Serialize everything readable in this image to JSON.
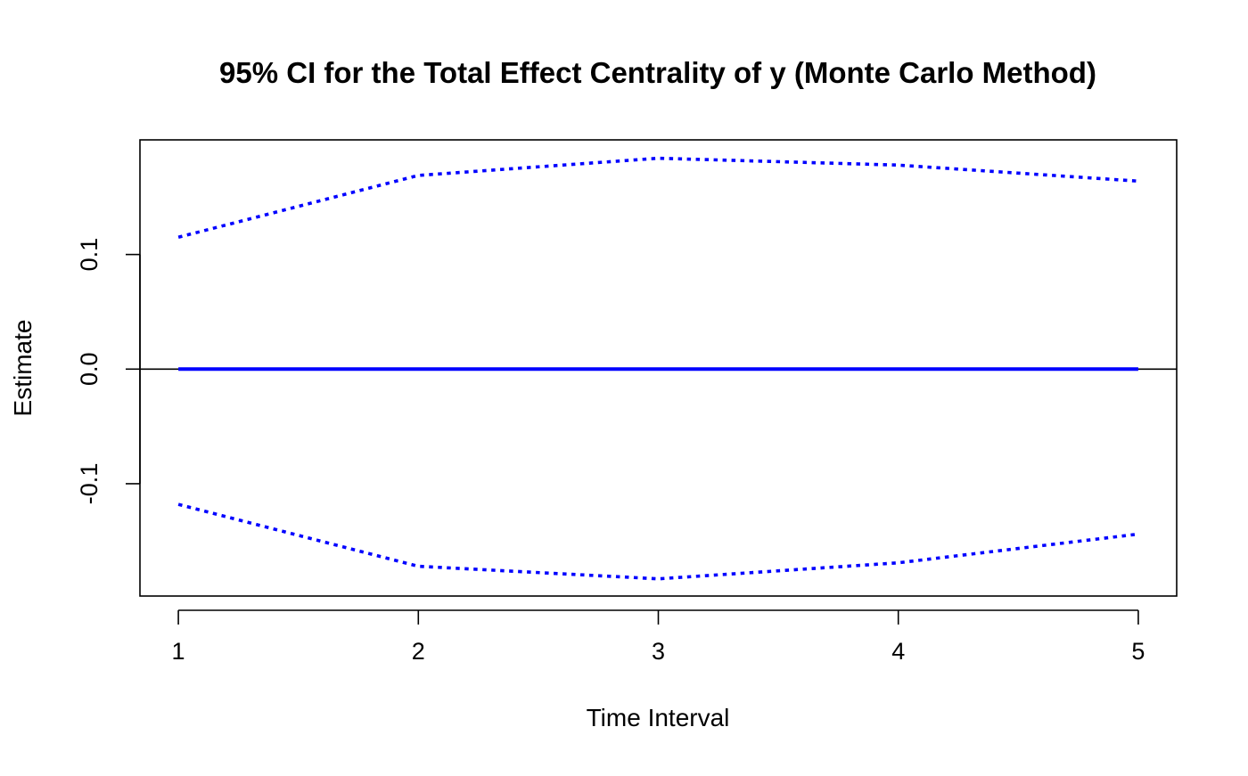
{
  "chart_data": {
    "type": "line",
    "title": "95% CI for the Total Effect Centrality of y (Monte Carlo Method)",
    "xlabel": "Time Interval",
    "ylabel": "Estimate",
    "x": [
      1,
      2,
      3,
      4,
      5
    ],
    "xticks": [
      "1",
      "2",
      "3",
      "4",
      "5"
    ],
    "yticks": [
      -0.1,
      0.0,
      0.1
    ],
    "ytick_labels": [
      "-0.1",
      "0.0",
      "0.1"
    ],
    "xlim": [
      0.84,
      5.16
    ],
    "ylim": [
      -0.198,
      0.2
    ],
    "reference_line": 0,
    "grid": false,
    "series": [
      {
        "values": [
          0.115,
          0.169,
          0.184,
          0.178,
          0.164
        ],
        "color": "#0000ff",
        "style": "dotted"
      },
      {
        "values": [
          0.0,
          0.0,
          0.0,
          0.0,
          0.0
        ],
        "color": "#0000ff",
        "style": "solid"
      },
      {
        "values": [
          -0.118,
          -0.172,
          -0.183,
          -0.169,
          -0.144
        ],
        "color": "#0000ff",
        "style": "dotted"
      }
    ]
  }
}
